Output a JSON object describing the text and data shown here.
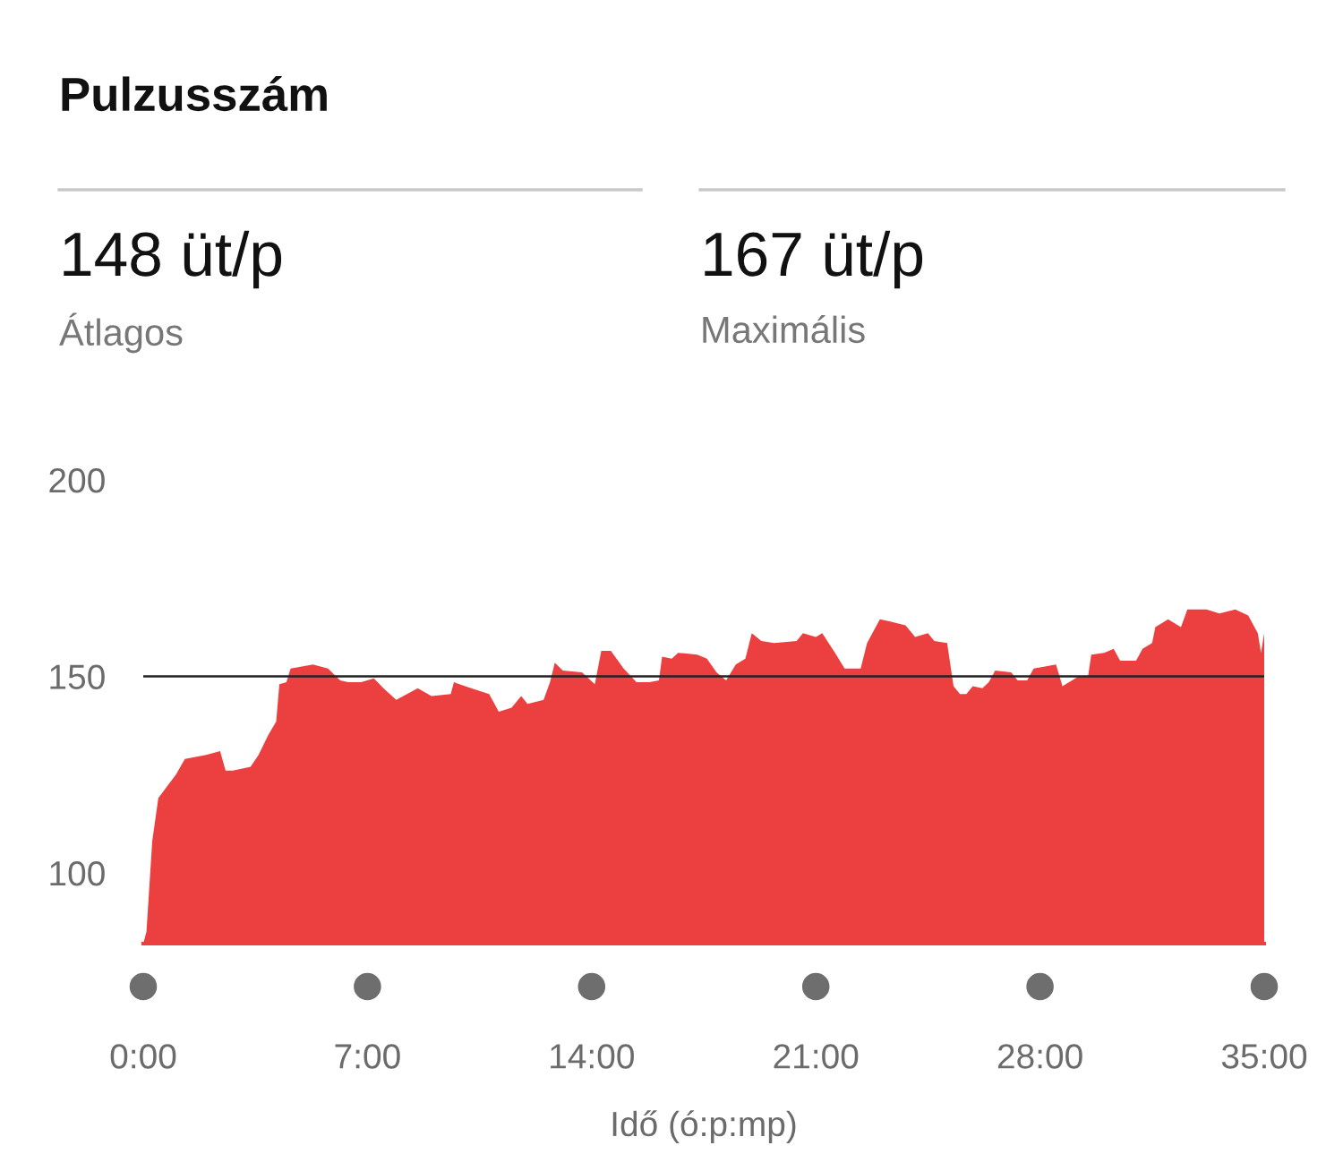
{
  "chart_data": {
    "type": "area",
    "title": "Pulzusszám",
    "xlabel": "Idő (ó:p:mp)",
    "annotations": [
      "148 üt/p",
      "Átlagos",
      "167 üt/p",
      "Maximális"
    ],
    "series": [
      {
        "color": "#ec4040",
        "x": [
          0,
          0.1,
          0.28,
          0.47,
          0.74,
          1.02,
          1.3,
          1.96,
          2.4,
          2.57,
          2.8,
          3.35,
          3.6,
          3.9,
          4.15,
          4.25,
          4.47,
          4.6,
          5.3,
          5.77,
          6.15,
          6.4,
          6.8,
          7.2,
          7.5,
          7.9,
          8.57,
          9.0,
          9.6,
          9.7,
          10.24,
          10.8,
          11.1,
          11.5,
          11.8,
          12.0,
          12.5,
          12.7,
          12.85,
          13.1,
          13.7,
          14.1,
          14.3,
          14.6,
          15.0,
          15.4,
          15.8,
          16.1,
          16.2,
          16.5,
          16.7,
          17.3,
          17.6,
          17.9,
          18.2,
          18.5,
          18.8,
          19.0,
          19.3,
          19.7,
          20.4,
          20.6,
          21.0,
          21.2,
          21.6,
          21.9,
          22.4,
          22.6,
          23.0,
          23.3,
          23.8,
          24.1,
          24.5,
          24.7,
          25.1,
          25.3,
          25.5,
          25.7,
          25.9,
          26.2,
          26.4,
          26.6,
          27.1,
          27.3,
          27.6,
          27.8,
          28.5,
          28.7,
          29.0,
          29.2,
          29.5,
          29.6,
          30.0,
          30.3,
          30.5,
          31.0,
          31.2,
          31.5,
          31.6,
          32.0,
          32.4,
          32.6,
          33.2,
          33.6,
          34.1,
          34.5,
          34.8,
          34.9,
          35.0
        ],
        "values": [
          82,
          85,
          108,
          119,
          122,
          125,
          129,
          130,
          131,
          126,
          126,
          127,
          130,
          135,
          138.5,
          148,
          148.5,
          152,
          153,
          152,
          149,
          148.5,
          148.5,
          149.5,
          147,
          144,
          147,
          145,
          145.5,
          148.5,
          147,
          145.5,
          141,
          142,
          145,
          143,
          144,
          148.5,
          153.5,
          151.5,
          151,
          148,
          156.5,
          156.5,
          152,
          148.5,
          148.5,
          149,
          155,
          154.5,
          156,
          155.5,
          154.5,
          151,
          149,
          153,
          154.5,
          161,
          159,
          158.5,
          159,
          161,
          160,
          161,
          156,
          152,
          152,
          158.5,
          164.5,
          164,
          163,
          160,
          161,
          159,
          158.5,
          147.5,
          145.5,
          145.5,
          147.5,
          147,
          148.5,
          151.5,
          151,
          149,
          149,
          152,
          153,
          147.5,
          149,
          150,
          150,
          155.5,
          156,
          157,
          154,
          154,
          157,
          158.5,
          162.5,
          164.5,
          162.5,
          167,
          167,
          166,
          167,
          165.5,
          161,
          156,
          161
        ]
      }
    ],
    "xlim": [
      0,
      35
    ],
    "ylim": [
      82,
      200
    ],
    "xticks": [
      {
        "value": 0,
        "label": "0:00"
      },
      {
        "value": 7,
        "label": "7:00"
      },
      {
        "value": 14,
        "label": "14:00"
      },
      {
        "value": 21,
        "label": "21:00"
      },
      {
        "value": 28,
        "label": "28:00"
      },
      {
        "value": 35,
        "label": "35:00"
      }
    ],
    "yticks": [
      100,
      150,
      200
    ],
    "ref_lines": [
      {
        "axis": "y",
        "value": 150,
        "color": "#222222"
      }
    ],
    "grid": false,
    "legend": false
  }
}
